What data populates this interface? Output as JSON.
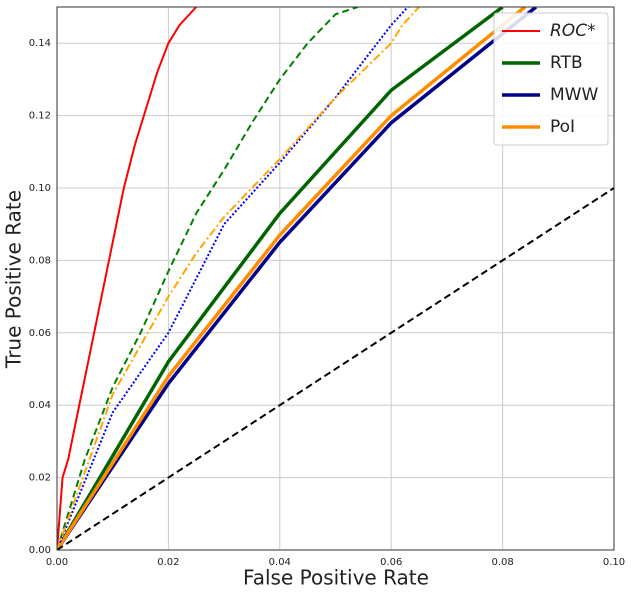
{
  "chart_data": {
    "type": "line",
    "xlabel": "False Positive Rate",
    "ylabel": "True Positive Rate",
    "xlim": [
      0,
      0.1
    ],
    "ylim": [
      0,
      0.15
    ],
    "xticks": [
      {
        "value": 0,
        "label": "0.00"
      },
      {
        "value": 0.02,
        "label": "0.02"
      },
      {
        "value": 0.04,
        "label": "0.04"
      },
      {
        "value": 0.06,
        "label": "0.06"
      },
      {
        "value": 0.08,
        "label": "0.08"
      },
      {
        "value": 0.1,
        "label": "0.10"
      }
    ],
    "yticks": [
      {
        "value": 0,
        "label": "0.00"
      },
      {
        "value": 0.02,
        "label": "0.02"
      },
      {
        "value": 0.04,
        "label": "0.04"
      },
      {
        "value": 0.06,
        "label": "0.06"
      },
      {
        "value": 0.08,
        "label": "0.08"
      },
      {
        "value": 0.1,
        "label": "0.10"
      },
      {
        "value": 0.12,
        "label": "0.12"
      },
      {
        "value": 0.14,
        "label": "0.14"
      }
    ],
    "grid": true,
    "legend": "upper right",
    "series": [
      {
        "name": "ROC*",
        "color": "#ff0000",
        "width": 2,
        "dash": "solid",
        "x": [
          0,
          0.001,
          0.002,
          0.004,
          0.006,
          0.008,
          0.01,
          0.012,
          0.014,
          0.016,
          0.018,
          0.02,
          0.022,
          0.025
        ],
        "values": [
          0,
          0.02,
          0.025,
          0.04,
          0.055,
          0.07,
          0.085,
          0.1,
          0.112,
          0.122,
          0.132,
          0.14,
          0.145,
          0.15
        ]
      },
      {
        "name": "RTB",
        "color": "#006400",
        "width": 3.5,
        "dash": "solid",
        "x": [
          0,
          0.02,
          0.04,
          0.06,
          0.08
        ],
        "values": [
          0,
          0.052,
          0.093,
          0.127,
          0.15
        ]
      },
      {
        "name": "MWW",
        "color": "#00008b",
        "width": 3.5,
        "dash": "solid",
        "x": [
          0,
          0.02,
          0.04,
          0.06,
          0.086
        ],
        "values": [
          0,
          0.046,
          0.085,
          0.118,
          0.15
        ]
      },
      {
        "name": "PoI",
        "color": "#ff8c00",
        "width": 3.5,
        "dash": "solid",
        "x": [
          0,
          0.02,
          0.04,
          0.06,
          0.084
        ],
        "values": [
          0,
          0.048,
          0.087,
          0.12,
          0.15
        ]
      },
      {
        "color": "#008000",
        "width": 2,
        "dash": "dashed",
        "x": [
          0,
          0.005,
          0.01,
          0.015,
          0.02,
          0.025,
          0.03,
          0.035,
          0.04,
          0.045,
          0.05,
          0.054
        ],
        "values": [
          0,
          0.025,
          0.045,
          0.06,
          0.077,
          0.093,
          0.105,
          0.118,
          0.13,
          0.14,
          0.148,
          0.15
        ]
      },
      {
        "color": "#0000ff",
        "width": 2,
        "dash": "dotted",
        "x": [
          0,
          0.01,
          0.02,
          0.025,
          0.03,
          0.04,
          0.05,
          0.055,
          0.06,
          0.063
        ],
        "values": [
          0,
          0.038,
          0.06,
          0.075,
          0.09,
          0.107,
          0.125,
          0.135,
          0.145,
          0.15
        ]
      },
      {
        "color": "#ffa500",
        "width": 2,
        "dash": "dashdot",
        "x": [
          0,
          0.01,
          0.02,
          0.025,
          0.03,
          0.04,
          0.05,
          0.06,
          0.062,
          0.065
        ],
        "values": [
          0,
          0.043,
          0.07,
          0.082,
          0.092,
          0.108,
          0.125,
          0.14,
          0.145,
          0.15
        ]
      },
      {
        "color": "#000000",
        "width": 2,
        "dash": "dashed",
        "x": [
          0,
          0.1
        ],
        "values": [
          0,
          0.1
        ]
      }
    ]
  }
}
